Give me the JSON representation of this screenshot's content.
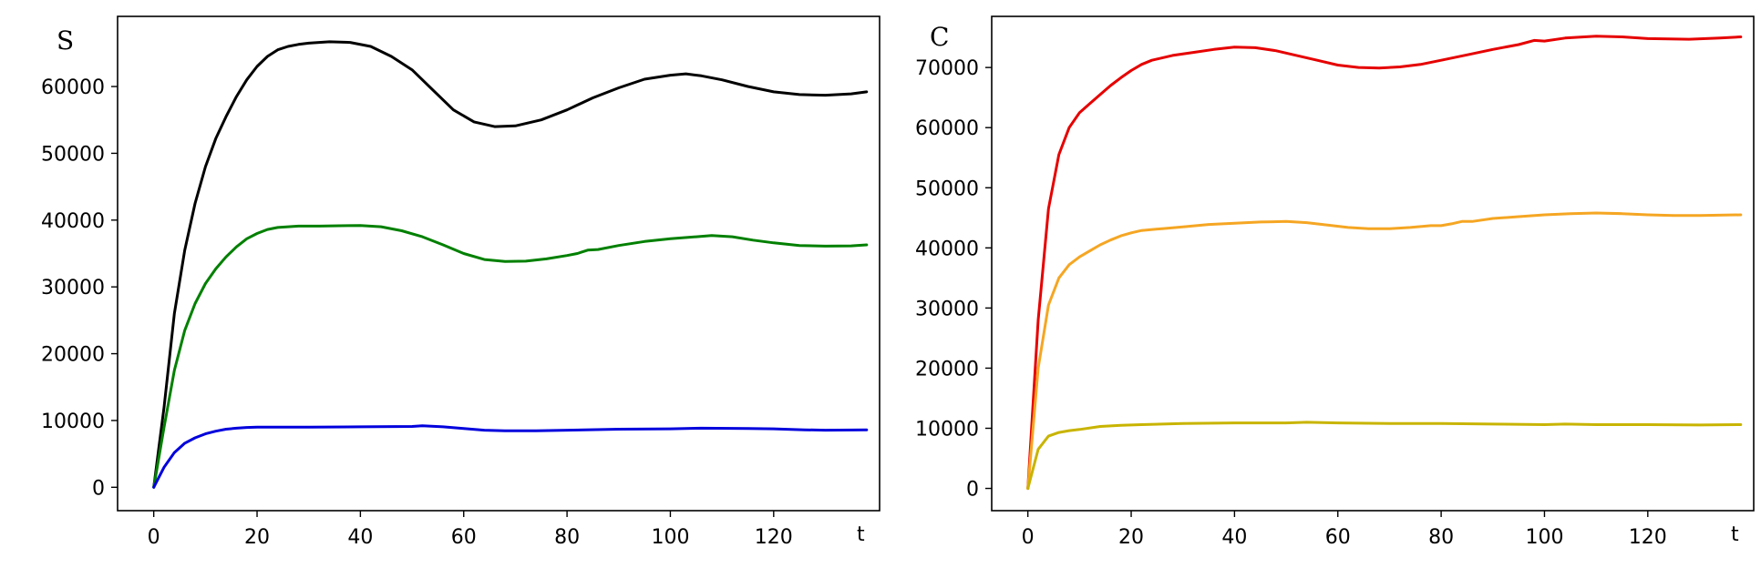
{
  "chart_data": [
    {
      "type": "line",
      "title": "",
      "ylabel": "S",
      "xlabel": "t",
      "xlim": [
        -7,
        140.5
      ],
      "ylim": [
        -3500,
        70500
      ],
      "xticks": [
        0,
        20,
        40,
        60,
        80,
        100,
        120
      ],
      "yticks": [
        0,
        10000,
        20000,
        30000,
        40000,
        50000,
        60000
      ],
      "grid": false,
      "series": [
        {
          "color": "#000000",
          "points": [
            [
              0,
              0
            ],
            [
              2,
              12000
            ],
            [
              4,
              26000
            ],
            [
              6,
              35500
            ],
            [
              8,
              42500
            ],
            [
              10,
              48000
            ],
            [
              12,
              52200
            ],
            [
              14,
              55500
            ],
            [
              16,
              58500
            ],
            [
              18,
              61000
            ],
            [
              20,
              63000
            ],
            [
              22,
              64500
            ],
            [
              24,
              65500
            ],
            [
              26,
              66000
            ],
            [
              28,
              66300
            ],
            [
              30,
              66500
            ],
            [
              34,
              66700
            ],
            [
              38,
              66600
            ],
            [
              42,
              66000
            ],
            [
              46,
              64500
            ],
            [
              50,
              62500
            ],
            [
              54,
              59500
            ],
            [
              58,
              56500
            ],
            [
              62,
              54700
            ],
            [
              66,
              54000
            ],
            [
              70,
              54100
            ],
            [
              75,
              55000
            ],
            [
              80,
              56500
            ],
            [
              85,
              58300
            ],
            [
              90,
              59800
            ],
            [
              95,
              61100
            ],
            [
              100,
              61700
            ],
            [
              103,
              61900
            ],
            [
              106,
              61600
            ],
            [
              110,
              61000
            ],
            [
              115,
              60000
            ],
            [
              120,
              59200
            ],
            [
              125,
              58800
            ],
            [
              130,
              58700
            ],
            [
              135,
              58900
            ],
            [
              138,
              59200
            ]
          ]
        },
        {
          "color": "#008000",
          "points": [
            [
              0,
              0
            ],
            [
              2,
              9000
            ],
            [
              4,
              17500
            ],
            [
              6,
              23500
            ],
            [
              8,
              27500
            ],
            [
              10,
              30500
            ],
            [
              12,
              32700
            ],
            [
              14,
              34500
            ],
            [
              16,
              36000
            ],
            [
              18,
              37200
            ],
            [
              20,
              38000
            ],
            [
              22,
              38600
            ],
            [
              24,
              38900
            ],
            [
              28,
              39100
            ],
            [
              32,
              39100
            ],
            [
              36,
              39150
            ],
            [
              40,
              39200
            ],
            [
              44,
              39000
            ],
            [
              48,
              38400
            ],
            [
              52,
              37500
            ],
            [
              56,
              36300
            ],
            [
              60,
              35000
            ],
            [
              64,
              34100
            ],
            [
              68,
              33800
            ],
            [
              72,
              33850
            ],
            [
              76,
              34200
            ],
            [
              80,
              34700
            ],
            [
              82,
              35000
            ],
            [
              84,
              35500
            ],
            [
              86,
              35600
            ],
            [
              90,
              36200
            ],
            [
              95,
              36800
            ],
            [
              100,
              37200
            ],
            [
              105,
              37500
            ],
            [
              108,
              37700
            ],
            [
              112,
              37500
            ],
            [
              116,
              37000
            ],
            [
              120,
              36600
            ],
            [
              125,
              36200
            ],
            [
              130,
              36100
            ],
            [
              135,
              36150
            ],
            [
              138,
              36300
            ]
          ]
        },
        {
          "color": "#0000dd",
          "points": [
            [
              0,
              0
            ],
            [
              2,
              3000
            ],
            [
              4,
              5200
            ],
            [
              6,
              6600
            ],
            [
              8,
              7400
            ],
            [
              10,
              8000
            ],
            [
              12,
              8400
            ],
            [
              14,
              8700
            ],
            [
              16,
              8850
            ],
            [
              18,
              8950
            ],
            [
              20,
              9000
            ],
            [
              30,
              9000
            ],
            [
              40,
              9050
            ],
            [
              50,
              9100
            ],
            [
              52,
              9200
            ],
            [
              56,
              9050
            ],
            [
              60,
              8800
            ],
            [
              64,
              8550
            ],
            [
              68,
              8450
            ],
            [
              74,
              8450
            ],
            [
              80,
              8550
            ],
            [
              90,
              8700
            ],
            [
              100,
              8750
            ],
            [
              106,
              8850
            ],
            [
              115,
              8800
            ],
            [
              120,
              8750
            ],
            [
              126,
              8600
            ],
            [
              130,
              8550
            ],
            [
              138,
              8600
            ]
          ]
        }
      ]
    },
    {
      "type": "line",
      "title": "",
      "ylabel": "C",
      "xlabel": "t",
      "xlim": [
        -7,
        140.5
      ],
      "ylim": [
        -3700,
        78500
      ],
      "xticks": [
        0,
        20,
        40,
        60,
        80,
        100,
        120
      ],
      "yticks": [
        0,
        10000,
        20000,
        30000,
        40000,
        50000,
        60000,
        70000
      ],
      "grid": false,
      "series": [
        {
          "color": "#e60000",
          "points": [
            [
              0,
              0
            ],
            [
              2,
              28000
            ],
            [
              4,
              46500
            ],
            [
              6,
              55500
            ],
            [
              8,
              60000
            ],
            [
              10,
              62500
            ],
            [
              12,
              64000
            ],
            [
              14,
              65500
            ],
            [
              16,
              67000
            ],
            [
              18,
              68300
            ],
            [
              20,
              69500
            ],
            [
              22,
              70500
            ],
            [
              24,
              71200
            ],
            [
              28,
              72000
            ],
            [
              32,
              72500
            ],
            [
              36,
              73000
            ],
            [
              40,
              73400
            ],
            [
              44,
              73300
            ],
            [
              48,
              72800
            ],
            [
              52,
              72000
            ],
            [
              56,
              71200
            ],
            [
              60,
              70400
            ],
            [
              64,
              70000
            ],
            [
              68,
              69900
            ],
            [
              72,
              70100
            ],
            [
              76,
              70500
            ],
            [
              80,
              71200
            ],
            [
              85,
              72100
            ],
            [
              90,
              73000
            ],
            [
              95,
              73800
            ],
            [
              98,
              74500
            ],
            [
              100,
              74400
            ],
            [
              104,
              74900
            ],
            [
              110,
              75200
            ],
            [
              115,
              75100
            ],
            [
              120,
              74800
            ],
            [
              128,
              74700
            ],
            [
              134,
              74900
            ],
            [
              138,
              75100
            ]
          ]
        },
        {
          "color": "#f5a623",
          "points": [
            [
              0,
              0
            ],
            [
              2,
              20000
            ],
            [
              4,
              30500
            ],
            [
              6,
              35000
            ],
            [
              8,
              37200
            ],
            [
              10,
              38500
            ],
            [
              12,
              39500
            ],
            [
              14,
              40500
            ],
            [
              16,
              41300
            ],
            [
              18,
              42000
            ],
            [
              20,
              42500
            ],
            [
              22,
              42900
            ],
            [
              26,
              43200
            ],
            [
              30,
              43500
            ],
            [
              35,
              43900
            ],
            [
              40,
              44100
            ],
            [
              45,
              44300
            ],
            [
              50,
              44400
            ],
            [
              54,
              44200
            ],
            [
              58,
              43800
            ],
            [
              62,
              43400
            ],
            [
              66,
              43200
            ],
            [
              70,
              43200
            ],
            [
              74,
              43400
            ],
            [
              78,
              43700
            ],
            [
              80,
              43700
            ],
            [
              82,
              44000
            ],
            [
              84,
              44400
            ],
            [
              86,
              44400
            ],
            [
              90,
              44900
            ],
            [
              95,
              45200
            ],
            [
              100,
              45500
            ],
            [
              105,
              45700
            ],
            [
              110,
              45800
            ],
            [
              115,
              45700
            ],
            [
              120,
              45500
            ],
            [
              125,
              45400
            ],
            [
              130,
              45400
            ],
            [
              138,
              45500
            ]
          ]
        },
        {
          "color": "#c8b400",
          "points": [
            [
              0,
              0
            ],
            [
              2,
              6500
            ],
            [
              4,
              8700
            ],
            [
              6,
              9300
            ],
            [
              8,
              9600
            ],
            [
              10,
              9800
            ],
            [
              14,
              10300
            ],
            [
              18,
              10500
            ],
            [
              22,
              10600
            ],
            [
              26,
              10700
            ],
            [
              30,
              10800
            ],
            [
              40,
              10900
            ],
            [
              50,
              10900
            ],
            [
              54,
              11000
            ],
            [
              60,
              10900
            ],
            [
              70,
              10800
            ],
            [
              80,
              10800
            ],
            [
              90,
              10700
            ],
            [
              100,
              10600
            ],
            [
              104,
              10700
            ],
            [
              110,
              10600
            ],
            [
              120,
              10600
            ],
            [
              130,
              10550
            ],
            [
              138,
              10600
            ]
          ]
        }
      ]
    }
  ]
}
